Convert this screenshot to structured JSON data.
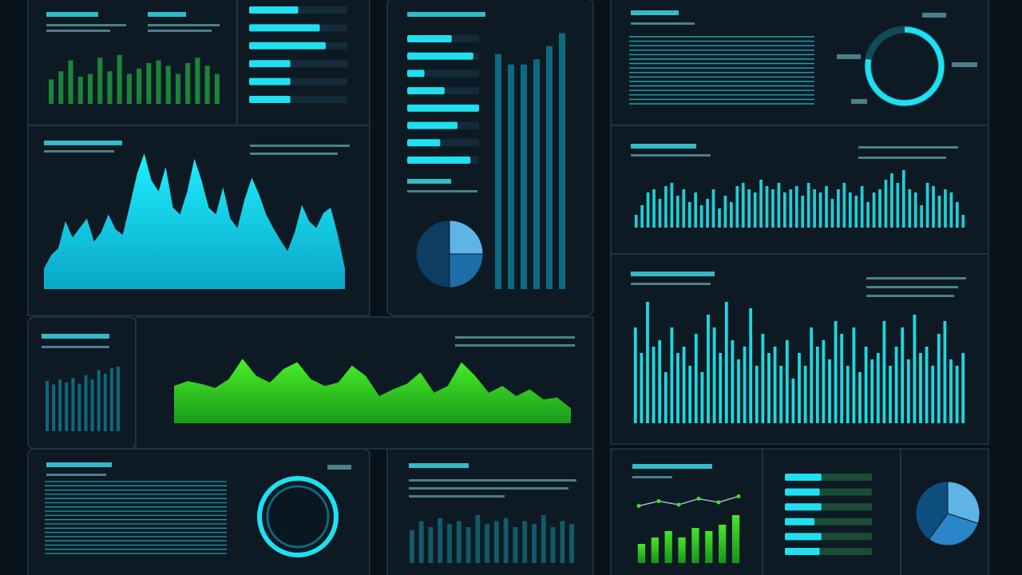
{
  "chart_data": [
    {
      "type": "bar",
      "color": "#1f8a3a",
      "ylim": [
        0,
        100
      ],
      "values": [
        45,
        60,
        80,
        50,
        55,
        85,
        60,
        90,
        55,
        65,
        75,
        80,
        70,
        55,
        75,
        85,
        70,
        55
      ]
    },
    {
      "type": "hbar",
      "color": "#1fe0f0",
      "xlim": [
        0,
        100
      ],
      "values": [
        50,
        72,
        78,
        42,
        42,
        42
      ]
    },
    {
      "type": "area",
      "color": "#19e6f5",
      "ylim": [
        0,
        100
      ],
      "values": [
        15,
        25,
        30,
        50,
        38,
        45,
        52,
        35,
        42,
        55,
        44,
        40,
        62,
        85,
        100,
        80,
        72,
        90,
        60,
        55,
        72,
        96,
        80,
        60,
        55,
        75,
        52,
        45,
        66,
        82,
        70,
        55,
        45,
        36,
        28,
        42,
        62,
        50,
        45,
        56,
        60,
        40,
        15
      ]
    },
    {
      "type": "hbar",
      "color": "#1fe0f0",
      "xlim": [
        0,
        100
      ],
      "values": [
        62,
        92,
        24,
        52,
        100,
        70,
        46,
        88
      ]
    },
    {
      "type": "bar",
      "color": "#0f6f86",
      "ylim": [
        0,
        100
      ],
      "values": [
        90,
        86,
        86,
        88,
        93,
        98
      ]
    },
    {
      "type": "pie",
      "colors": [
        "#5fb4e6",
        "#1e6fa8",
        "#0e3d63"
      ],
      "values": [
        25,
        25,
        50
      ]
    },
    {
      "type": "donut",
      "color": "#1fe0f0",
      "ylim": [
        0,
        100
      ],
      "values": [
        78
      ]
    },
    {
      "type": "bar",
      "color": "#22d8e0",
      "ylim": [
        0,
        100
      ],
      "values": [
        20,
        35,
        55,
        60,
        45,
        65,
        70,
        50,
        60,
        40,
        55,
        35,
        45,
        60,
        30,
        50,
        40,
        65,
        70,
        60,
        55,
        75,
        65,
        60,
        70,
        55,
        60,
        65,
        50,
        70,
        60,
        55,
        65,
        45,
        60,
        70,
        55,
        50,
        65,
        40,
        55,
        60,
        75,
        85,
        70,
        90,
        60,
        55,
        35,
        70,
        65,
        50,
        60,
        55,
        40,
        20
      ]
    },
    {
      "type": "bar",
      "color": "#1fe3ea",
      "ylim": [
        0,
        100
      ],
      "values": [
        75,
        55,
        95,
        60,
        65,
        40,
        75,
        55,
        60,
        45,
        70,
        40,
        85,
        75,
        55,
        95,
        65,
        50,
        60,
        90,
        45,
        70,
        55,
        60,
        45,
        65,
        35,
        55,
        45,
        75,
        60,
        65,
        50,
        80,
        70,
        45,
        75,
        40,
        60,
        50,
        55,
        80,
        45,
        60,
        75,
        50,
        85,
        55,
        60,
        45,
        70,
        80,
        50,
        45,
        55
      ]
    },
    {
      "type": "bar",
      "color": "#146a80",
      "ylim": [
        0,
        100
      ],
      "values": [
        70,
        65,
        72,
        68,
        74,
        66,
        78,
        72,
        85,
        80,
        88,
        90
      ]
    },
    {
      "type": "area",
      "color": "#3de022",
      "ylim": [
        0,
        100
      ],
      "values": [
        55,
        62,
        58,
        52,
        65,
        95,
        70,
        60,
        80,
        90,
        65,
        55,
        60,
        85,
        70,
        40,
        50,
        58,
        75,
        45,
        55,
        90,
        70,
        45,
        55,
        40,
        50,
        35,
        38,
        22
      ]
    },
    {
      "type": "bar",
      "color": "#1a8fa0",
      "ylim": [
        0,
        100
      ],
      "values": [
        55,
        70,
        60,
        75,
        65,
        70,
        60,
        80,
        65,
        70,
        75,
        60,
        70,
        65,
        80,
        60,
        70,
        65
      ]
    },
    {
      "type": "bar",
      "color": "#35d63a",
      "ylim": [
        0,
        100
      ],
      "values": [
        30,
        40,
        50,
        40,
        55,
        50,
        60,
        75
      ]
    },
    {
      "type": "line",
      "color": "#9fb8c8",
      "ylim": [
        0,
        100
      ],
      "values": [
        55,
        75,
        60,
        85,
        70,
        95
      ]
    },
    {
      "type": "hbar",
      "color": "#1fe0f0",
      "xlim": [
        0,
        100
      ],
      "values": [
        42,
        40,
        42,
        34,
        42,
        40
      ]
    },
    {
      "type": "pie",
      "colors": [
        "#5fb4e6",
        "#2a86c8",
        "#0f4f80"
      ],
      "values": [
        30,
        30,
        40
      ]
    }
  ]
}
